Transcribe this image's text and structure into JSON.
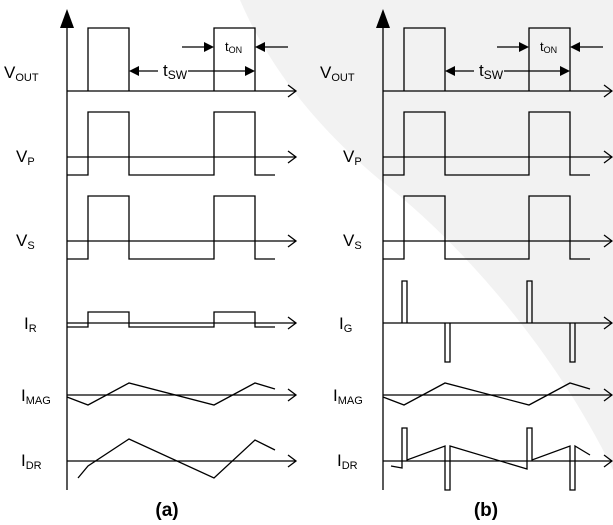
{
  "panels": [
    {
      "id": "a",
      "caption": "(a)",
      "signals": [
        {
          "key": "vout",
          "main": "V",
          "sub": "OUT"
        },
        {
          "key": "vp",
          "main": "V",
          "sub": "P"
        },
        {
          "key": "vs",
          "main": "V",
          "sub": "S"
        },
        {
          "key": "ir",
          "main": "I",
          "sub": "R"
        },
        {
          "key": "imag",
          "main": "I",
          "sub": "MAG"
        },
        {
          "key": "idr",
          "main": "I",
          "sub": "DR"
        }
      ],
      "t_on": {
        "main": "t",
        "sub": "ON"
      },
      "t_sw": {
        "main": "t",
        "sub": "SW"
      }
    },
    {
      "id": "b",
      "caption": "(b)",
      "signals": [
        {
          "key": "vout",
          "main": "V",
          "sub": "OUT"
        },
        {
          "key": "vp",
          "main": "V",
          "sub": "P"
        },
        {
          "key": "vs",
          "main": "V",
          "sub": "S"
        },
        {
          "key": "ig",
          "main": "I",
          "sub": "G"
        },
        {
          "key": "imag",
          "main": "I",
          "sub": "MAG"
        },
        {
          "key": "idr",
          "main": "I",
          "sub": "DR"
        }
      ],
      "t_on": {
        "main": "t",
        "sub": "ON"
      },
      "t_sw": {
        "main": "t",
        "sub": "SW"
      }
    }
  ]
}
